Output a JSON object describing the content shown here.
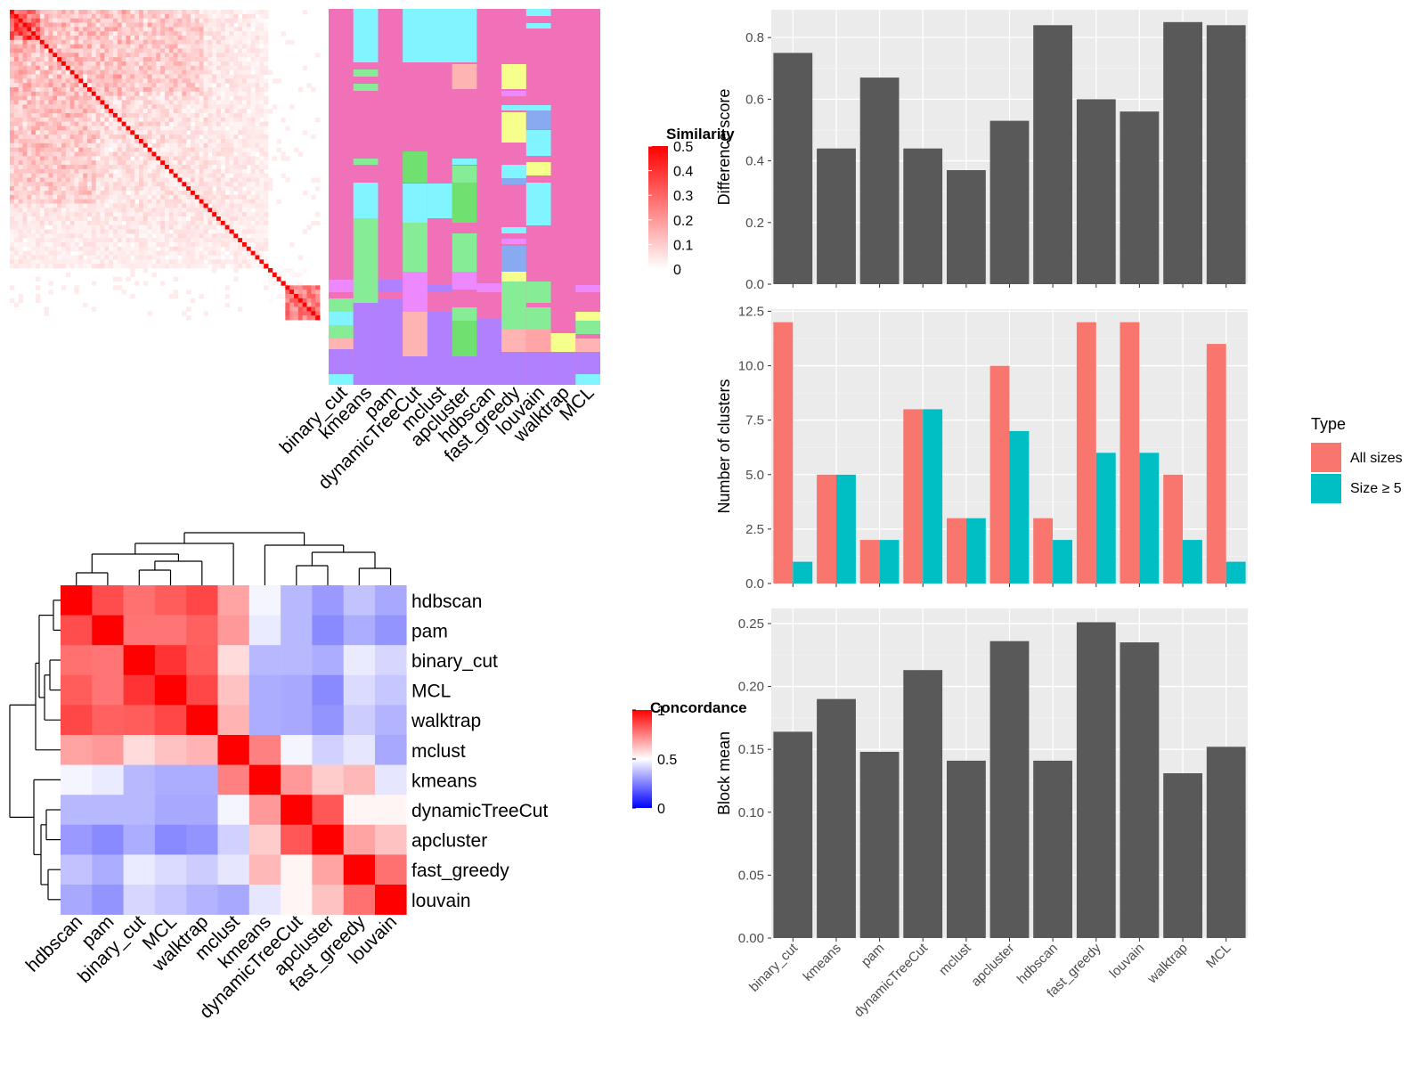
{
  "chart_data": [
    {
      "type": "heatmap",
      "panel": "similarity-heatmap",
      "legend_title": "Similarity",
      "legend_ticks": [
        "0",
        "0.1",
        "0.2",
        "0.3",
        "0.4",
        "0.5"
      ],
      "legend_range": [
        0,
        0.5
      ],
      "n": 72,
      "low_color": "#ffffff",
      "high_color": "#ff0000"
    },
    {
      "type": "heatmap",
      "panel": "cluster-assignment-annotation",
      "columns": [
        "binary_cut",
        "kmeans",
        "pam",
        "dynamicTreeCut",
        "mclust",
        "apcluster",
        "hdbscan",
        "fast_greedy",
        "louvain",
        "walktrap",
        "MCL"
      ],
      "cluster_colors": [
        "#f071b8",
        "#80f5ff",
        "#86ec95",
        "#b080ff",
        "#ffa5a8",
        "#ffb4b4",
        "#70e070",
        "#f6ff8c",
        "#ee88ff",
        "#88aaf0"
      ]
    },
    {
      "type": "heatmap",
      "panel": "concordance-heatmap",
      "legend_title": "Concordance",
      "legend_ticks": [
        "0",
        "0.5",
        "1"
      ],
      "legend_range": [
        0,
        1
      ],
      "row_labels": [
        "hdbscan",
        "pam",
        "binary_cut",
        "MCL",
        "walktrap",
        "mclust",
        "kmeans",
        "dynamicTreeCut",
        "apcluster",
        "fast_greedy",
        "louvain"
      ],
      "col_labels": [
        "hdbscan",
        "pam",
        "binary_cut",
        "MCL",
        "walktrap",
        "mclust",
        "kmeans",
        "dynamicTreeCut",
        "apcluster",
        "fast_greedy",
        "louvain"
      ],
      "matrix": [
        [
          1.0,
          0.85,
          0.78,
          0.82,
          0.86,
          0.68,
          0.48,
          0.36,
          0.3,
          0.38,
          0.33
        ],
        [
          0.85,
          1.0,
          0.77,
          0.77,
          0.81,
          0.7,
          0.46,
          0.36,
          0.27,
          0.34,
          0.29
        ],
        [
          0.78,
          0.77,
          1.0,
          0.9,
          0.82,
          0.57,
          0.36,
          0.36,
          0.34,
          0.46,
          0.42
        ],
        [
          0.82,
          0.77,
          0.9,
          1.0,
          0.86,
          0.62,
          0.34,
          0.33,
          0.27,
          0.43,
          0.39
        ],
        [
          0.86,
          0.81,
          0.82,
          0.86,
          1.0,
          0.65,
          0.34,
          0.33,
          0.29,
          0.4,
          0.35
        ],
        [
          0.68,
          0.7,
          0.57,
          0.62,
          0.65,
          1.0,
          0.75,
          0.48,
          0.41,
          0.45,
          0.33
        ],
        [
          0.48,
          0.46,
          0.36,
          0.34,
          0.34,
          0.75,
          1.0,
          0.7,
          0.6,
          0.64,
          0.45
        ],
        [
          0.36,
          0.36,
          0.36,
          0.33,
          0.33,
          0.48,
          0.7,
          1.0,
          0.83,
          0.52,
          0.52
        ],
        [
          0.3,
          0.27,
          0.34,
          0.27,
          0.29,
          0.41,
          0.6,
          0.83,
          1.0,
          0.68,
          0.62
        ],
        [
          0.38,
          0.34,
          0.46,
          0.43,
          0.4,
          0.45,
          0.64,
          0.52,
          0.68,
          1.0,
          0.78
        ],
        [
          0.33,
          0.29,
          0.42,
          0.39,
          0.35,
          0.33,
          0.45,
          0.52,
          0.62,
          0.78,
          1.0
        ]
      ]
    },
    {
      "type": "bar",
      "panel": "difference-score",
      "categories": [
        "binary_cut",
        "kmeans",
        "pam",
        "dynamicTreeCut",
        "mclust",
        "apcluster",
        "hdbscan",
        "fast_greedy",
        "louvain",
        "walktrap",
        "MCL"
      ],
      "values": [
        0.75,
        0.44,
        0.67,
        0.44,
        0.37,
        0.53,
        0.84,
        0.6,
        0.56,
        0.85,
        0.84
      ],
      "ylabel": "Difference score",
      "ylim": [
        0,
        0.89
      ],
      "yticks": [
        0.0,
        0.2,
        0.4,
        0.6,
        0.8
      ],
      "ytick_labels": [
        "0.0",
        "0.2",
        "0.4",
        "0.6",
        "0.8"
      ],
      "grid": true
    },
    {
      "type": "bar",
      "panel": "number-of-clusters",
      "categories": [
        "binary_cut",
        "kmeans",
        "pam",
        "dynamicTreeCut",
        "mclust",
        "apcluster",
        "hdbscan",
        "fast_greedy",
        "louvain",
        "walktrap",
        "MCL"
      ],
      "series": [
        {
          "name": "All sizes",
          "values": [
            12,
            5,
            2,
            8,
            3,
            10,
            3,
            12,
            12,
            5,
            11
          ]
        },
        {
          "name": "Size ≥ 5",
          "values": [
            1,
            5,
            2,
            8,
            3,
            7,
            2,
            6,
            6,
            2,
            1
          ]
        }
      ],
      "ylabel": "Number of clusters",
      "ylim": [
        0,
        12.6
      ],
      "yticks": [
        0,
        2.5,
        5,
        7.5,
        10,
        12.5
      ],
      "ytick_labels": [
        "0.0",
        "2.5",
        "5.0",
        "7.5",
        "10.0",
        "12.5"
      ],
      "legend_title": "Type",
      "legend_placement": "right",
      "grid": true
    },
    {
      "type": "bar",
      "panel": "block-mean",
      "categories": [
        "binary_cut",
        "kmeans",
        "pam",
        "dynamicTreeCut",
        "mclust",
        "apcluster",
        "hdbscan",
        "fast_greedy",
        "louvain",
        "walktrap",
        "MCL"
      ],
      "values": [
        0.164,
        0.19,
        0.148,
        0.213,
        0.141,
        0.236,
        0.141,
        0.251,
        0.235,
        0.131,
        0.152
      ],
      "ylabel": "Block mean",
      "ylim": [
        0,
        0.262
      ],
      "yticks": [
        0.0,
        0.05,
        0.1,
        0.15,
        0.2,
        0.25
      ],
      "ytick_labels": [
        "0.00",
        "0.05",
        "0.10",
        "0.15",
        "0.20",
        "0.25"
      ],
      "grid": true
    }
  ],
  "colors": {
    "bar_fill": "#595959",
    "panel_bg": "#ebebeb",
    "all_sizes": "#f8766d",
    "size_ge_5": "#00bfc4",
    "concordance_low": "#0000ff",
    "concordance_mid": "#ffffff",
    "concordance_high": "#ff0000"
  }
}
